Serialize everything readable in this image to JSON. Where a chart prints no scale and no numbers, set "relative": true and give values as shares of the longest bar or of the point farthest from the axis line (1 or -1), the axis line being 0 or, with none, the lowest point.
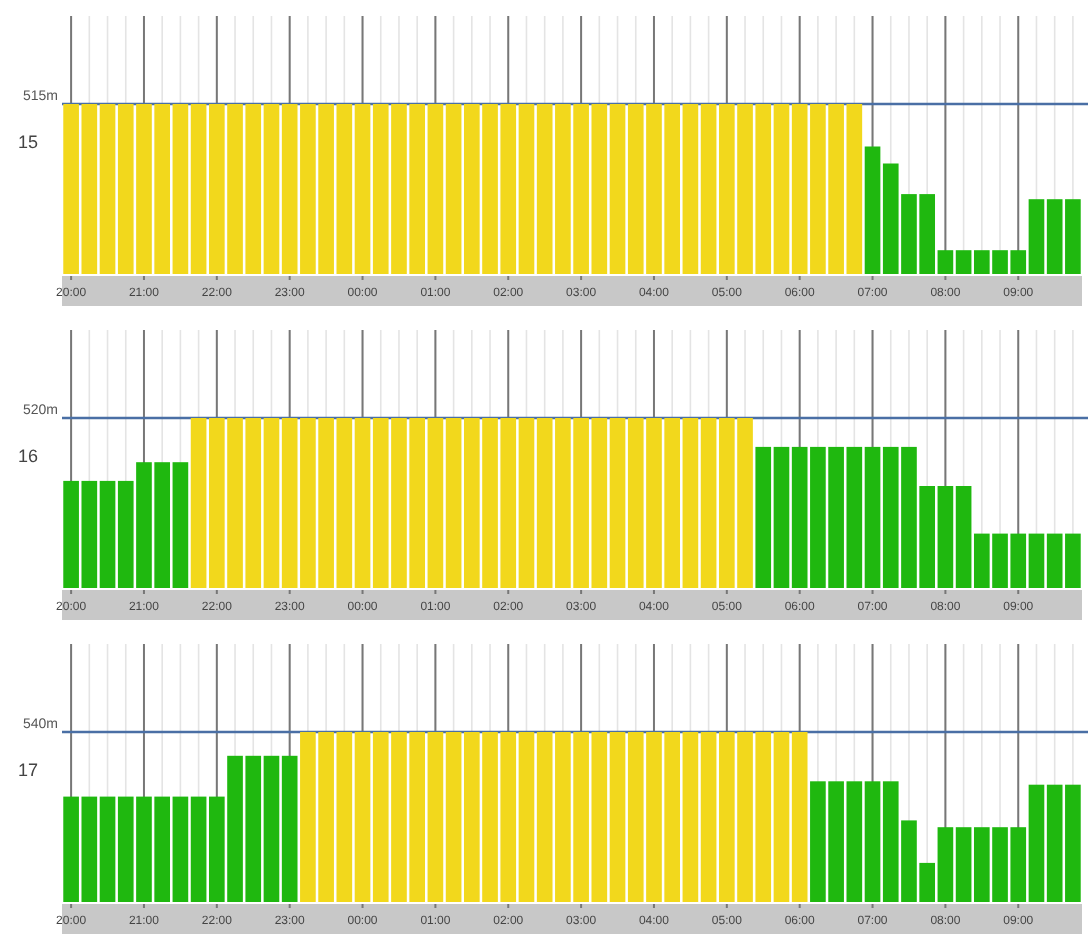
{
  "chart_data": [
    {
      "type": "bar",
      "ylabel": "15",
      "relative": true,
      "grid": "x",
      "categories": [
        "20:00",
        null,
        null,
        null,
        "21:00",
        null,
        null,
        null,
        "22:00",
        null,
        null,
        null,
        "23:00",
        null,
        null,
        null,
        "00:00",
        null,
        null,
        null,
        "01:00",
        null,
        null,
        null,
        "02:00",
        null,
        null,
        null,
        "03:00",
        null,
        null,
        null,
        "04:00",
        null,
        null,
        null,
        "05:00",
        null,
        null,
        null,
        "06:00",
        null,
        null,
        null,
        "07:00",
        null,
        null,
        null,
        "08:00",
        null,
        null,
        null,
        "09:00",
        null,
        null,
        null
      ],
      "values": [
        1,
        1,
        1,
        1,
        1,
        1,
        1,
        1,
        1,
        1,
        1,
        1,
        1,
        1,
        1,
        1,
        1,
        1,
        1,
        1,
        1,
        1,
        1,
        1,
        1,
        1,
        1,
        1,
        1,
        1,
        1,
        1,
        1,
        1,
        1,
        1,
        1,
        1,
        1,
        1,
        1,
        1,
        1,
        1,
        0.75,
        0.65,
        0.47,
        0.47,
        0.14,
        0.14,
        0.14,
        0.14,
        0.14,
        0.44,
        0.44,
        0.44
      ],
      "colors": [
        "#f2d81c",
        "#f2d81c",
        "#f2d81c",
        "#f2d81c",
        "#f2d81c",
        "#f2d81c",
        "#f2d81c",
        "#f2d81c",
        "#f2d81c",
        "#f2d81c",
        "#f2d81c",
        "#f2d81c",
        "#f2d81c",
        "#f2d81c",
        "#f2d81c",
        "#f2d81c",
        "#f2d81c",
        "#f2d81c",
        "#f2d81c",
        "#f2d81c",
        "#f2d81c",
        "#f2d81c",
        "#f2d81c",
        "#f2d81c",
        "#f2d81c",
        "#f2d81c",
        "#f2d81c",
        "#f2d81c",
        "#f2d81c",
        "#f2d81c",
        "#f2d81c",
        "#f2d81c",
        "#f2d81c",
        "#f2d81c",
        "#f2d81c",
        "#f2d81c",
        "#f2d81c",
        "#f2d81c",
        "#f2d81c",
        "#f2d81c",
        "#f2d81c",
        "#f2d81c",
        "#f2d81c",
        "#f2d81c",
        "#1fb80f",
        "#1fb80f",
        "#1fb80f",
        "#1fb80f",
        "#1fb80f",
        "#1fb80f",
        "#1fb80f",
        "#1fb80f",
        "#1fb80f",
        "#1fb80f",
        "#1fb80f",
        "#1fb80f"
      ],
      "ref_lines": [
        {
          "axis": "y",
          "value": 1,
          "label": "515m",
          "color": "#4a6fa5"
        }
      ]
    },
    {
      "type": "bar",
      "ylabel": "16",
      "relative": true,
      "grid": "x",
      "categories": [
        "20:00",
        null,
        null,
        null,
        "21:00",
        null,
        null,
        null,
        "22:00",
        null,
        null,
        null,
        "23:00",
        null,
        null,
        null,
        "00:00",
        null,
        null,
        null,
        "01:00",
        null,
        null,
        null,
        "02:00",
        null,
        null,
        null,
        "03:00",
        null,
        null,
        null,
        "04:00",
        null,
        null,
        null,
        "05:00",
        null,
        null,
        null,
        "06:00",
        null,
        null,
        null,
        "07:00",
        null,
        null,
        null,
        "08:00",
        null,
        null,
        null,
        "09:00",
        null,
        null,
        null
      ],
      "values": [
        0.63,
        0.63,
        0.63,
        0.63,
        0.74,
        0.74,
        0.74,
        1,
        1,
        1,
        1,
        1,
        1,
        1,
        1,
        1,
        1,
        1,
        1,
        1,
        1,
        1,
        1,
        1,
        1,
        1,
        1,
        1,
        1,
        1,
        1,
        1,
        1,
        1,
        1,
        1,
        1,
        1,
        0.83,
        0.83,
        0.83,
        0.83,
        0.83,
        0.83,
        0.83,
        0.83,
        0.83,
        0.6,
        0.6,
        0.6,
        0.32,
        0.32,
        0.32,
        0.32,
        0.32,
        0.32
      ],
      "colors": [
        "#1fb80f",
        "#1fb80f",
        "#1fb80f",
        "#1fb80f",
        "#1fb80f",
        "#1fb80f",
        "#1fb80f",
        "#f2d81c",
        "#f2d81c",
        "#f2d81c",
        "#f2d81c",
        "#f2d81c",
        "#f2d81c",
        "#f2d81c",
        "#f2d81c",
        "#f2d81c",
        "#f2d81c",
        "#f2d81c",
        "#f2d81c",
        "#f2d81c",
        "#f2d81c",
        "#f2d81c",
        "#f2d81c",
        "#f2d81c",
        "#f2d81c",
        "#f2d81c",
        "#f2d81c",
        "#f2d81c",
        "#f2d81c",
        "#f2d81c",
        "#f2d81c",
        "#f2d81c",
        "#f2d81c",
        "#f2d81c",
        "#f2d81c",
        "#f2d81c",
        "#f2d81c",
        "#f2d81c",
        "#1fb80f",
        "#1fb80f",
        "#1fb80f",
        "#1fb80f",
        "#1fb80f",
        "#1fb80f",
        "#1fb80f",
        "#1fb80f",
        "#1fb80f",
        "#1fb80f",
        "#1fb80f",
        "#1fb80f",
        "#1fb80f",
        "#1fb80f",
        "#1fb80f",
        "#1fb80f",
        "#1fb80f",
        "#1fb80f"
      ],
      "ref_lines": [
        {
          "axis": "y",
          "value": 1,
          "label": "520m",
          "color": "#4a6fa5"
        }
      ]
    },
    {
      "type": "bar",
      "ylabel": "17",
      "relative": true,
      "grid": "x",
      "categories": [
        "20:00",
        null,
        null,
        null,
        "21:00",
        null,
        null,
        null,
        "22:00",
        null,
        null,
        null,
        "23:00",
        null,
        null,
        null,
        "00:00",
        null,
        null,
        null,
        "01:00",
        null,
        null,
        null,
        "02:00",
        null,
        null,
        null,
        "03:00",
        null,
        null,
        null,
        "04:00",
        null,
        null,
        null,
        "05:00",
        null,
        null,
        null,
        "06:00",
        null,
        null,
        null,
        "07:00",
        null,
        null,
        null,
        "08:00",
        null,
        null,
        null,
        "09:00",
        null,
        null,
        null
      ],
      "values": [
        0.62,
        0.62,
        0.62,
        0.62,
        0.62,
        0.62,
        0.62,
        0.62,
        0.62,
        0.86,
        0.86,
        0.86,
        0.86,
        1,
        1,
        1,
        1,
        1,
        1,
        1,
        1,
        1,
        1,
        1,
        1,
        1,
        1,
        1,
        1,
        1,
        1,
        1,
        1,
        1,
        1,
        1,
        1,
        1,
        1,
        1,
        1,
        0.71,
        0.71,
        0.71,
        0.71,
        0.71,
        0.48,
        0.23,
        0.44,
        0.44,
        0.44,
        0.44,
        0.44,
        0.69,
        0.69,
        0.69
      ],
      "colors": [
        "#1fb80f",
        "#1fb80f",
        "#1fb80f",
        "#1fb80f",
        "#1fb80f",
        "#1fb80f",
        "#1fb80f",
        "#1fb80f",
        "#1fb80f",
        "#1fb80f",
        "#1fb80f",
        "#1fb80f",
        "#1fb80f",
        "#f2d81c",
        "#f2d81c",
        "#f2d81c",
        "#f2d81c",
        "#f2d81c",
        "#f2d81c",
        "#f2d81c",
        "#f2d81c",
        "#f2d81c",
        "#f2d81c",
        "#f2d81c",
        "#f2d81c",
        "#f2d81c",
        "#f2d81c",
        "#f2d81c",
        "#f2d81c",
        "#f2d81c",
        "#f2d81c",
        "#f2d81c",
        "#f2d81c",
        "#f2d81c",
        "#f2d81c",
        "#f2d81c",
        "#f2d81c",
        "#f2d81c",
        "#f2d81c",
        "#f2d81c",
        "#f2d81c",
        "#1fb80f",
        "#1fb80f",
        "#1fb80f",
        "#1fb80f",
        "#1fb80f",
        "#1fb80f",
        "#1fb80f",
        "#1fb80f",
        "#1fb80f",
        "#1fb80f",
        "#1fb80f",
        "#1fb80f",
        "#1fb80f",
        "#1fb80f",
        "#1fb80f"
      ],
      "ref_lines": [
        {
          "axis": "y",
          "value": 1,
          "label": "540m",
          "color": "#4a6fa5"
        }
      ]
    }
  ]
}
